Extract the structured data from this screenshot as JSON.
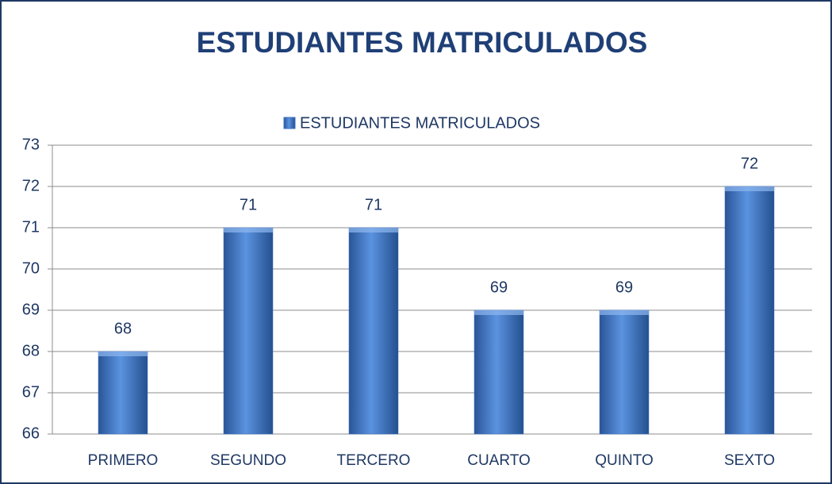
{
  "chart_data": {
    "type": "bar",
    "title": "ESTUDIANTES MATRICULADOS",
    "categories": [
      "PRIMERO",
      "SEGUNDO",
      "TERCERO",
      "CUARTO",
      "QUINTO",
      "SEXTO"
    ],
    "series": [
      {
        "name": "ESTUDIANTES MATRICULADOS",
        "color": "#3a6fc4",
        "values": [
          68,
          71,
          71,
          69,
          69,
          72
        ]
      }
    ],
    "ylim": [
      66,
      73
    ],
    "yticks": [
      66,
      67,
      68,
      69,
      70,
      71,
      72,
      73
    ],
    "grid": true,
    "legend": "top"
  }
}
